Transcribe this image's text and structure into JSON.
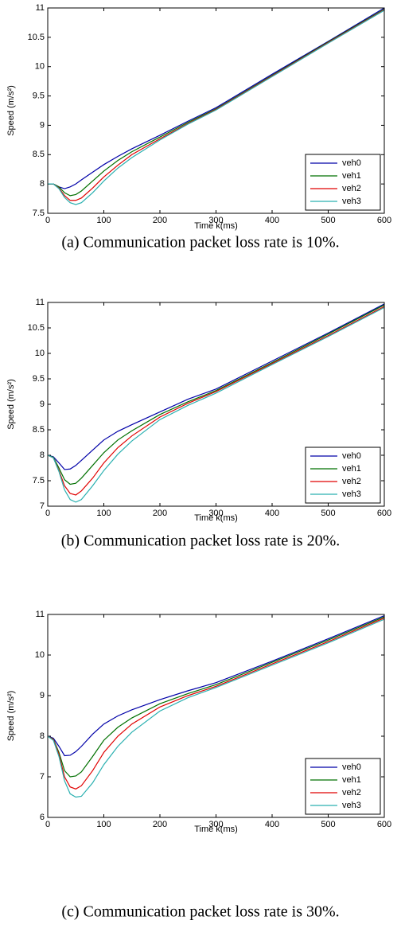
{
  "chart_data": [
    {
      "type": "line",
      "caption": "(a) Communication packet loss rate is 10%.",
      "xlabel": "Time k(ms)",
      "ylabel": "Speed (m/s²)",
      "x": [
        0,
        10,
        20,
        30,
        40,
        50,
        60,
        80,
        100,
        125,
        150,
        200,
        250,
        300,
        400,
        500,
        600
      ],
      "xlim": [
        0,
        600
      ],
      "xticks": [
        0,
        100,
        200,
        300,
        400,
        500,
        600
      ],
      "ylim": [
        7.5,
        11
      ],
      "yticks": [
        7.5,
        8,
        8.5,
        9,
        9.5,
        10,
        10.5,
        11
      ],
      "legend": "lower right",
      "series": [
        {
          "name": "veh0",
          "color": "#0000a8",
          "values": [
            8,
            8,
            7.95,
            7.92,
            7.95,
            8.0,
            8.07,
            8.2,
            8.33,
            8.47,
            8.6,
            8.83,
            9.07,
            9.3,
            9.87,
            10.43,
            11
          ]
        },
        {
          "name": "veh1",
          "color": "#007000",
          "values": [
            8,
            8,
            7.95,
            7.85,
            7.8,
            7.82,
            7.88,
            8.05,
            8.22,
            8.4,
            8.55,
            8.8,
            9.05,
            9.28,
            9.85,
            10.42,
            10.98
          ]
        },
        {
          "name": "veh2",
          "color": "#e00000",
          "values": [
            8,
            8,
            7.93,
            7.8,
            7.72,
            7.72,
            7.76,
            7.93,
            8.12,
            8.32,
            8.5,
            8.77,
            9.03,
            9.27,
            9.84,
            10.41,
            10.97
          ]
        },
        {
          "name": "veh3",
          "color": "#2ab0b0",
          "values": [
            8,
            8,
            7.92,
            7.77,
            7.68,
            7.65,
            7.68,
            7.85,
            8.05,
            8.27,
            8.45,
            8.75,
            9.02,
            9.26,
            9.83,
            10.4,
            10.96
          ]
        }
      ]
    },
    {
      "type": "line",
      "caption": "(b) Communication packet loss rate is 20%.",
      "xlabel": "Time k(ms)",
      "ylabel": "Speed (m/s²)",
      "x": [
        0,
        10,
        20,
        30,
        40,
        50,
        60,
        80,
        100,
        125,
        150,
        200,
        250,
        300,
        400,
        500,
        600
      ],
      "xlim": [
        0,
        600
      ],
      "xticks": [
        0,
        100,
        200,
        300,
        400,
        500,
        600
      ],
      "ylim": [
        7,
        11
      ],
      "yticks": [
        7,
        7.5,
        8,
        8.5,
        9,
        9.5,
        10,
        10.5,
        11
      ],
      "legend": "lower right",
      "series": [
        {
          "name": "veh0",
          "color": "#0000a8",
          "values": [
            8,
            7.97,
            7.85,
            7.72,
            7.73,
            7.8,
            7.9,
            8.1,
            8.3,
            8.47,
            8.6,
            8.85,
            9.1,
            9.3,
            9.85,
            10.4,
            10.97
          ]
        },
        {
          "name": "veh1",
          "color": "#007000",
          "values": [
            8,
            7.96,
            7.75,
            7.52,
            7.43,
            7.45,
            7.55,
            7.8,
            8.05,
            8.3,
            8.48,
            8.8,
            9.05,
            9.27,
            9.82,
            10.38,
            10.95
          ]
        },
        {
          "name": "veh2",
          "color": "#e00000",
          "values": [
            8,
            7.95,
            7.7,
            7.4,
            7.25,
            7.22,
            7.3,
            7.55,
            7.85,
            8.15,
            8.38,
            8.75,
            9.02,
            9.25,
            9.8,
            10.35,
            10.92
          ]
        },
        {
          "name": "veh3",
          "color": "#2ab0b0",
          "values": [
            8,
            7.95,
            7.68,
            7.32,
            7.13,
            7.08,
            7.13,
            7.4,
            7.7,
            8.02,
            8.28,
            8.7,
            8.98,
            9.22,
            9.78,
            10.33,
            10.9
          ]
        }
      ]
    },
    {
      "type": "line",
      "caption": "(c) Communication packet loss rate is 30%.",
      "xlabel": "Time k(ms)",
      "ylabel": "Speed (m/s²)",
      "x": [
        0,
        10,
        20,
        30,
        40,
        50,
        60,
        80,
        100,
        125,
        150,
        200,
        250,
        300,
        400,
        500,
        600
      ],
      "xlim": [
        0,
        600
      ],
      "xticks": [
        0,
        100,
        200,
        300,
        400,
        500,
        600
      ],
      "ylim": [
        6,
        11
      ],
      "yticks": [
        6,
        7,
        8,
        9,
        10,
        11
      ],
      "legend": "lower right",
      "series": [
        {
          "name": "veh0",
          "color": "#0000a8",
          "values": [
            8,
            7.95,
            7.75,
            7.52,
            7.53,
            7.62,
            7.75,
            8.05,
            8.3,
            8.5,
            8.65,
            8.9,
            9.12,
            9.32,
            9.85,
            10.4,
            10.97
          ]
        },
        {
          "name": "veh1",
          "color": "#007000",
          "values": [
            8,
            7.93,
            7.6,
            7.15,
            7.0,
            7.02,
            7.12,
            7.5,
            7.9,
            8.22,
            8.45,
            8.8,
            9.05,
            9.27,
            9.82,
            10.37,
            10.94
          ]
        },
        {
          "name": "veh2",
          "color": "#e00000",
          "values": [
            8,
            7.92,
            7.55,
            7.0,
            6.75,
            6.7,
            6.78,
            7.15,
            7.6,
            8.0,
            8.3,
            8.72,
            9.0,
            9.23,
            9.78,
            10.33,
            10.91
          ]
        },
        {
          "name": "veh3",
          "color": "#2ab0b0",
          "values": [
            8,
            7.9,
            7.5,
            6.9,
            6.58,
            6.5,
            6.52,
            6.85,
            7.3,
            7.75,
            8.1,
            8.62,
            8.95,
            9.2,
            9.75,
            10.3,
            10.88
          ]
        }
      ]
    }
  ]
}
